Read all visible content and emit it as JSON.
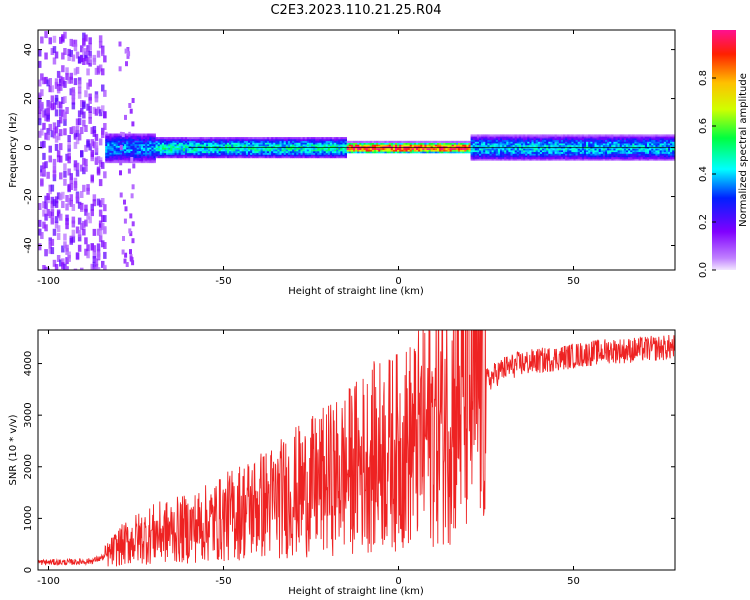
{
  "title": "C2E3.2023.110.21.25.R04",
  "colors": {
    "snr_line": "#ee2222",
    "axes": "#000000",
    "background": "#ffffff",
    "colormap": [
      "#f2e6ff",
      "#c080ff",
      "#8000ff",
      "#0020ff",
      "#00ffff",
      "#00ff40",
      "#d0ff00",
      "#ffc000",
      "#ff2000",
      "#ff1090"
    ]
  },
  "chart_data": [
    {
      "type": "heatmap",
      "title": "",
      "xlabel": "Height of straight line (km)",
      "ylabel": "Frequency (Hz)",
      "xlim": [
        -103,
        79
      ],
      "ylim": [
        -50,
        48
      ],
      "x_ticks": [
        -100,
        -50,
        0,
        50
      ],
      "y_ticks": [
        -40,
        -20,
        0,
        20,
        40
      ],
      "colorbar": {
        "label": "Normalized spectral amplitude",
        "range": [
          0,
          1
        ],
        "ticks": [
          "0.0",
          "0.2",
          "0.4",
          "0.6",
          "0.8"
        ],
        "scale": "rainbow (white-purple-blue-cyan-green-yellow-red-pink)"
      },
      "regions": [
        {
          "x_range": [
            -103,
            -84
          ],
          "description": "scattered broadband noise",
          "amplitude": 0.1
        },
        {
          "x_range": [
            -84,
            -70
          ],
          "frequency_halfwidth_hz": 5,
          "amplitude": 0.35
        },
        {
          "x_range": [
            -70,
            -15
          ],
          "frequency_halfwidth_hz": 3,
          "amplitude": 0.45
        },
        {
          "x_range": [
            -15,
            20
          ],
          "frequency_halfwidth_hz": 1,
          "amplitude": 0.92
        },
        {
          "x_range": [
            20,
            79
          ],
          "frequency_halfwidth_hz": 4,
          "amplitude": 0.4
        }
      ]
    },
    {
      "type": "line",
      "title": "",
      "xlabel": "Height of straight line (km)",
      "ylabel": "SNR (10 * v/v)",
      "xlim": [
        -103,
        79
      ],
      "ylim": [
        0,
        4650
      ],
      "x_ticks": [
        -100,
        -50,
        0,
        50
      ],
      "y_ticks": [
        0,
        1000,
        2000,
        3000,
        4000
      ],
      "grid": false,
      "series": [
        {
          "x": [
            -103,
            -95,
            -88,
            -84,
            -80,
            -75,
            -70,
            -65,
            -60,
            -55,
            -50,
            -45,
            -40,
            -35,
            -30,
            -25,
            -20,
            -15,
            -10,
            -5,
            0,
            5,
            10,
            15,
            20,
            25,
            30,
            35,
            40,
            45,
            50,
            55,
            60,
            65,
            70,
            75,
            79
          ],
          "values": [
            150,
            150,
            170,
            250,
            450,
            600,
            700,
            750,
            800,
            900,
            1000,
            1150,
            1250,
            1350,
            1500,
            1600,
            1750,
            1900,
            2100,
            2250,
            2300,
            2500,
            2800,
            3100,
            3350,
            3650,
            3900,
            4000,
            4050,
            4100,
            4150,
            4200,
            4250,
            4250,
            4280,
            4300,
            4320
          ]
        }
      ]
    }
  ]
}
